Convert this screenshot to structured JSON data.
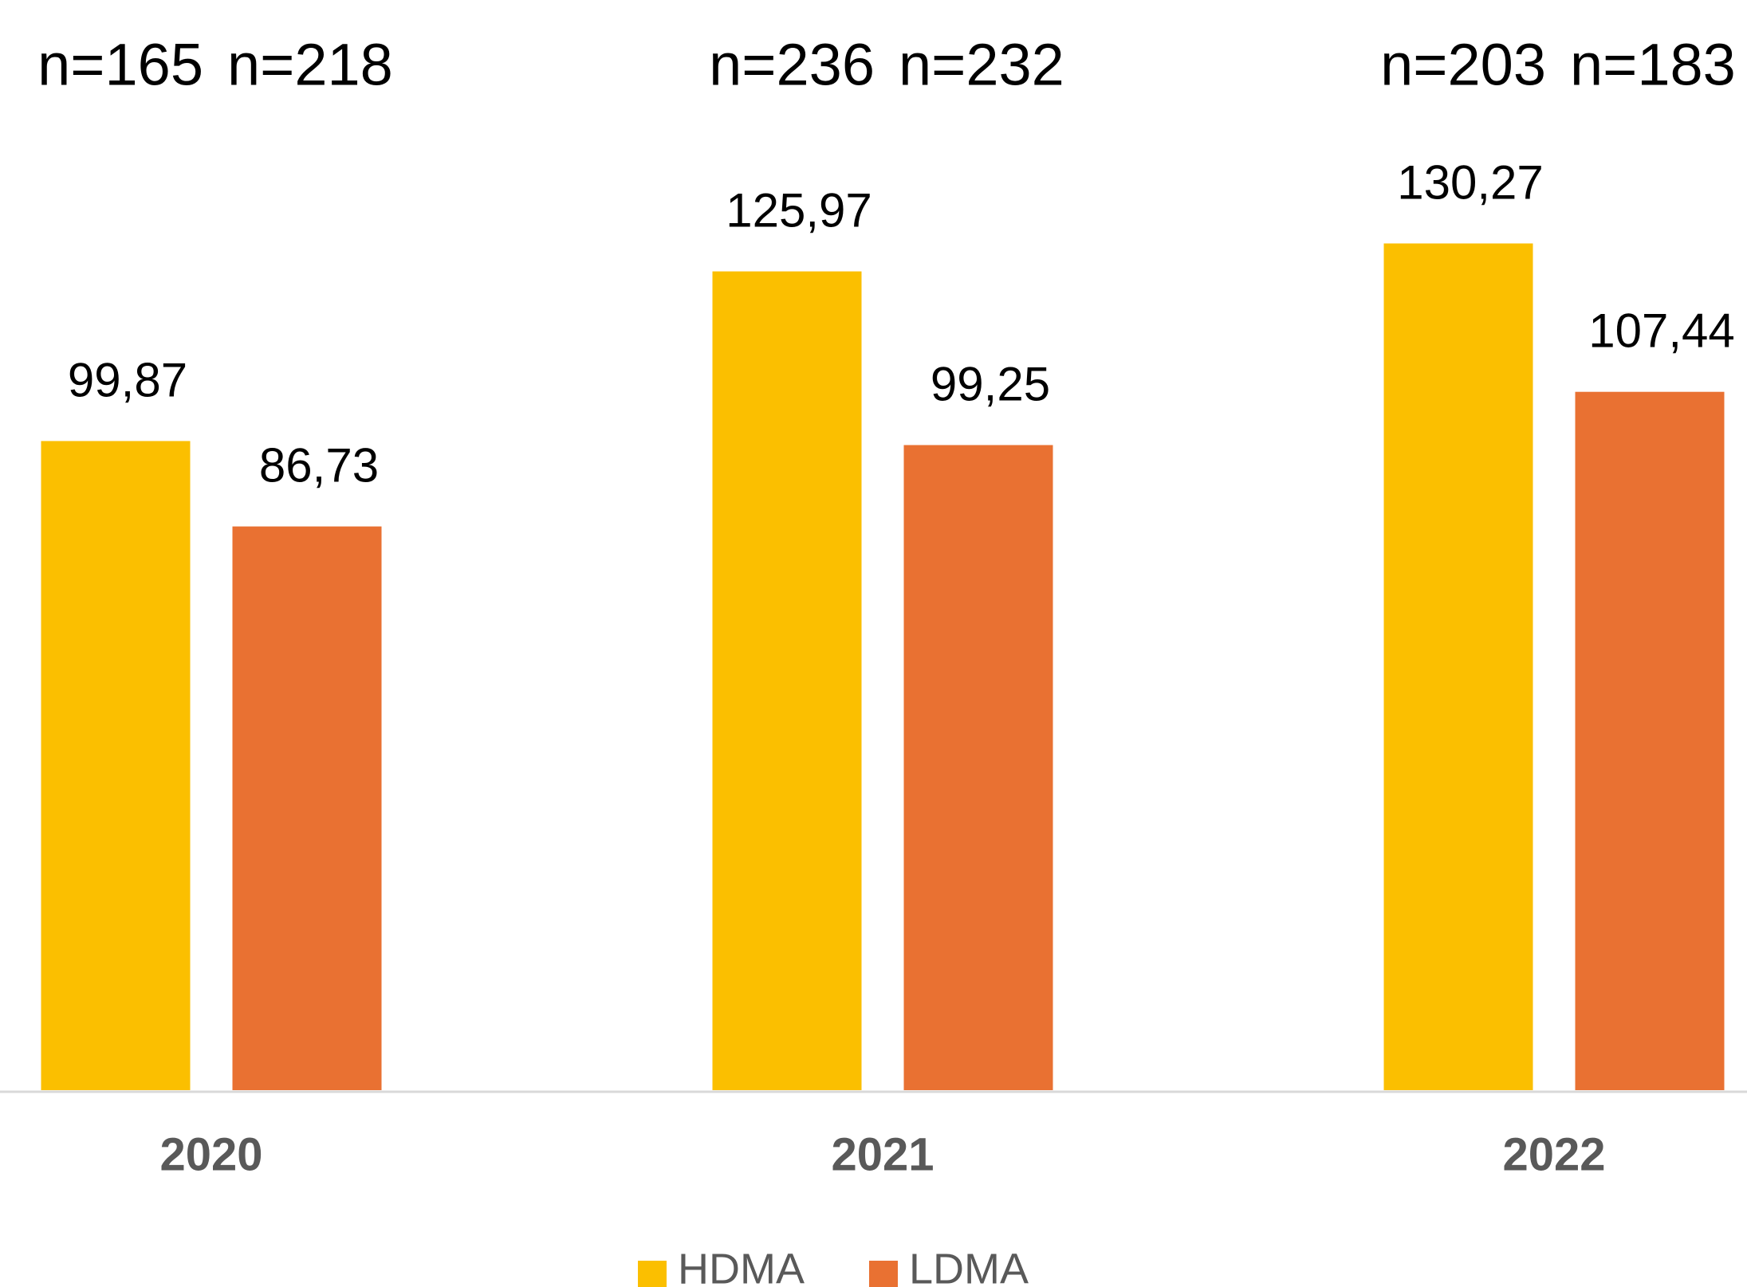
{
  "chart_data": {
    "type": "bar",
    "categories": [
      "2020",
      "2021",
      "2022"
    ],
    "series": [
      {
        "name": "HDMA",
        "color": "#fbbf00",
        "values": [
          99.87,
          125.97,
          130.27
        ],
        "value_labels": [
          "99,87",
          "125,97",
          "130,27"
        ],
        "annotations": [
          "n=165",
          "n=236",
          "n=203"
        ]
      },
      {
        "name": "LDMA",
        "color": "#e97132",
        "values": [
          86.73,
          99.25,
          107.44
        ],
        "value_labels": [
          "86,73",
          "99,25",
          "107,44"
        ],
        "annotations": [
          "n=218",
          "n=232",
          "n=183"
        ]
      }
    ],
    "ylim": [
      0,
      160
    ],
    "legend": "bottom"
  }
}
